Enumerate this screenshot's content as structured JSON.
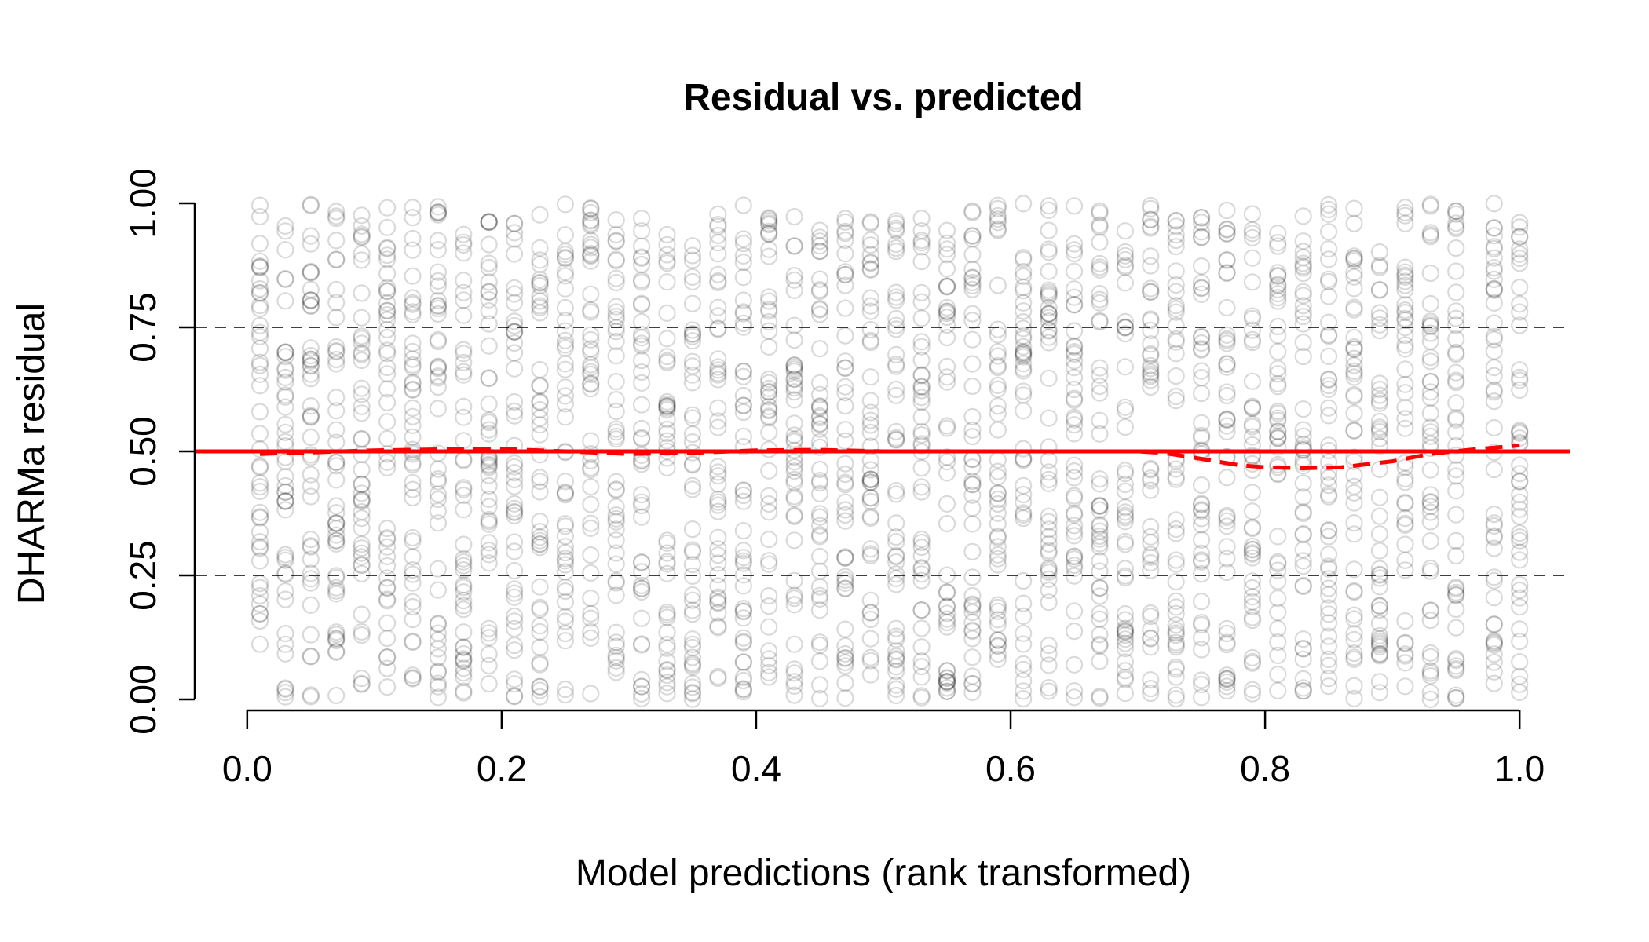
{
  "chart_data": {
    "type": "scatter",
    "title": "Residual vs. predicted",
    "xlabel": "Model predictions (rank transformed)",
    "ylabel": "DHARMa residual",
    "xlim": [
      -0.04,
      1.04
    ],
    "ylim": [
      -0.03,
      1.03
    ],
    "x_ticks": [
      0.0,
      0.2,
      0.4,
      0.6,
      0.8,
      1.0
    ],
    "x_tick_labels": [
      "0.0",
      "0.2",
      "0.4",
      "0.6",
      "0.8",
      "1.0"
    ],
    "y_ticks": [
      0.0,
      0.25,
      0.5,
      0.75,
      1.0
    ],
    "y_tick_labels": [
      "0.00",
      "0.25",
      "0.50",
      "0.75",
      "1.00"
    ],
    "reference_lines": [
      {
        "y": 0.25,
        "style": "dashed",
        "color": "#000000"
      },
      {
        "y": 0.5,
        "style": "solid",
        "color": "#ff0000"
      },
      {
        "y": 0.75,
        "style": "dashed",
        "color": "#000000"
      }
    ],
    "points": {
      "color": "#000000",
      "opacity": 0.15,
      "marker": "open-circle",
      "x_groups": [
        0.01,
        0.03,
        0.05,
        0.07,
        0.09,
        0.11,
        0.13,
        0.15,
        0.17,
        0.19,
        0.21,
        0.23,
        0.25,
        0.27,
        0.29,
        0.31,
        0.33,
        0.35,
        0.37,
        0.39,
        0.41,
        0.43,
        0.45,
        0.47,
        0.49,
        0.51,
        0.53,
        0.55,
        0.57,
        0.59,
        0.61,
        0.63,
        0.65,
        0.67,
        0.69,
        0.71,
        0.73,
        0.75,
        0.77,
        0.79,
        0.81,
        0.83,
        0.85,
        0.87,
        0.89,
        0.91,
        0.93,
        0.95,
        0.98,
        1.0
      ],
      "y_range": [
        0.0,
        1.0
      ],
      "per_group_count": 45
    },
    "series": [
      {
        "style": "dashed",
        "color": "#ff0000",
        "x": [
          0.01,
          0.05,
          0.1,
          0.15,
          0.2,
          0.25,
          0.3,
          0.35,
          0.4,
          0.45,
          0.5,
          0.55,
          0.6,
          0.65,
          0.7,
          0.72,
          0.75,
          0.78,
          0.8,
          0.83,
          0.86,
          0.9,
          0.93,
          0.96,
          1.0
        ],
        "y": [
          0.495,
          0.498,
          0.502,
          0.504,
          0.505,
          0.5,
          0.495,
          0.497,
          0.502,
          0.503,
          0.5,
          0.5,
          0.5,
          0.5,
          0.5,
          0.497,
          0.485,
          0.472,
          0.468,
          0.466,
          0.468,
          0.48,
          0.495,
          0.503,
          0.512
        ]
      }
    ]
  }
}
